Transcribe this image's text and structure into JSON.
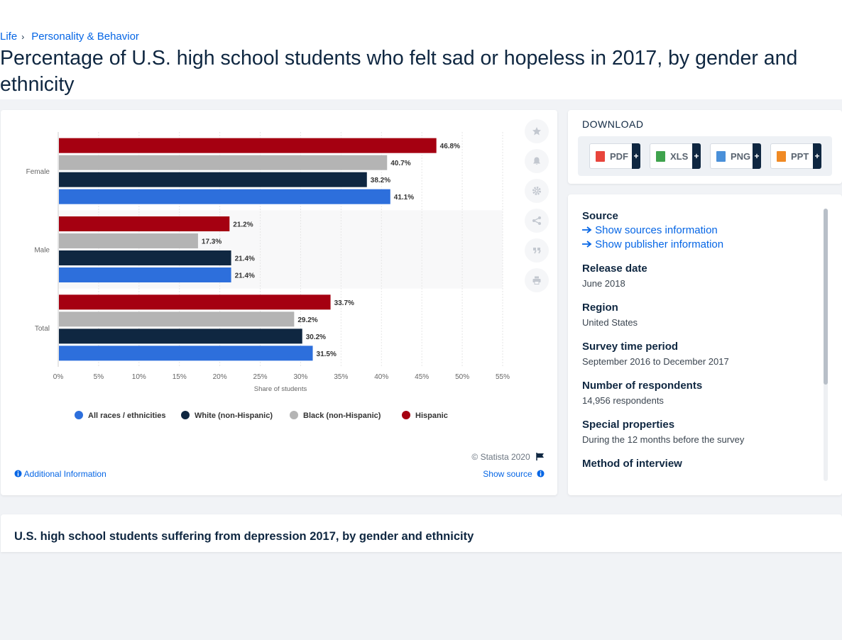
{
  "breadcrumb": {
    "items": [
      "Life",
      "Personality & Behavior"
    ],
    "separator": "›"
  },
  "page": {
    "title": "Percentage of U.S. high school students who felt sad or hopeless in 2017, by gender and ethnicity"
  },
  "chart_data": {
    "type": "bar",
    "orientation": "horizontal",
    "categories": [
      "Female",
      "Male",
      "Total"
    ],
    "series": [
      {
        "name": "Hispanic",
        "color": "#a50011",
        "values": [
          46.8,
          21.2,
          33.7
        ]
      },
      {
        "name": "Black (non-Hispanic)",
        "color": "#b4b4b4",
        "values": [
          40.7,
          17.3,
          29.2
        ]
      },
      {
        "name": "White (non-Hispanic)",
        "color": "#0f2741",
        "values": [
          38.2,
          21.4,
          30.2
        ]
      },
      {
        "name": "All races / ethnicities",
        "color": "#2d6fdc",
        "values": [
          41.1,
          21.4,
          31.5
        ]
      }
    ],
    "value_labels": {
      "Hispanic": [
        "46.8%",
        "21.2%",
        "33.7%"
      ],
      "Black (non-Hispanic)": [
        "40.7%",
        "17.3%",
        "29.2%"
      ],
      "White (non-Hispanic)": [
        "38.2%",
        "21.4%",
        "30.2%"
      ],
      "All races / ethnicities": [
        "41.1%",
        "21.4%",
        "31.5%"
      ]
    },
    "xlim": [
      0,
      55
    ],
    "xticks": [
      "0%",
      "5%",
      "10%",
      "15%",
      "20%",
      "25%",
      "30%",
      "35%",
      "40%",
      "45%",
      "50%",
      "55%"
    ],
    "xlabel": "Share of students",
    "legend": [
      "All races / ethnicities",
      "White (non-Hispanic)",
      "Black (non-Hispanic)",
      "Hispanic"
    ],
    "legend_position": "bottom",
    "grid": true
  },
  "chart_footer": {
    "copyright": "© Statista 2020",
    "additional_info": "Additional Information",
    "show_source": "Show source"
  },
  "download": {
    "title": "DOWNLOAD",
    "buttons": [
      {
        "label": "PDF",
        "color": "#e8453c"
      },
      {
        "label": "XLS",
        "color": "#3fa34d"
      },
      {
        "label": "PNG",
        "color": "#4a90d9"
      },
      {
        "label": "PPT",
        "color": "#f08a24"
      }
    ],
    "plus": "+"
  },
  "info": {
    "source_label": "Source",
    "show_sources": "Show sources information",
    "show_publisher": "Show publisher information",
    "release_label": "Release date",
    "release_value": "June 2018",
    "region_label": "Region",
    "region_value": "United States",
    "survey_label": "Survey time period",
    "survey_value": "September 2016 to December 2017",
    "respondents_label": "Number of respondents",
    "respondents_value": "14,956 respondents",
    "special_label": "Special properties",
    "special_value": "During the 12 months before the survey",
    "method_label": "Method of interview"
  },
  "related": {
    "title": "U.S. high school students suffering from depression 2017, by gender and ethnicity"
  },
  "icons": [
    "star-icon",
    "bell-icon",
    "gear-icon",
    "share-icon",
    "quote-icon",
    "print-icon",
    "flag-icon",
    "info-icon",
    "arrow-right-icon"
  ]
}
